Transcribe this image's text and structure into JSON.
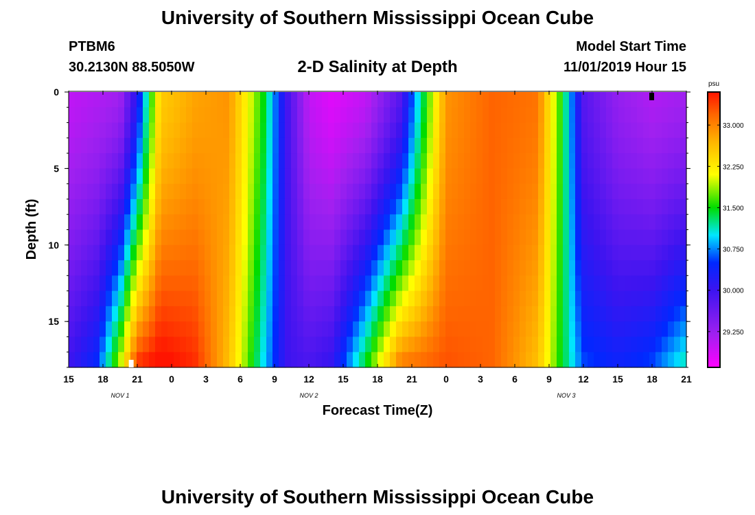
{
  "header": {
    "title": "University of Southern Mississippi Ocean Cube",
    "station": "PTBM6",
    "coordinates": "30.2130N 88.5050W",
    "plot_title": "2-D Salinity at Depth",
    "start_label": "Model Start Time",
    "start_value": "11/01/2019 Hour 15"
  },
  "footer": {
    "title": "University of Southern Mississippi Ocean Cube"
  },
  "chart_data": {
    "type": "heatmap",
    "title": "2-D Salinity at Depth",
    "xlabel": "Forecast Time(Z)",
    "ylabel": "Depth (ft)",
    "x_range_hours": [
      0,
      54
    ],
    "y_range_ft": [
      0,
      18
    ],
    "x_ticks": [
      "15",
      "18",
      "21",
      "0",
      "3",
      "6",
      "9",
      "12",
      "15",
      "18",
      "21",
      "0",
      "3",
      "6",
      "9",
      "12",
      "15",
      "18",
      "21"
    ],
    "y_ticks": [
      "0",
      "5",
      "10",
      "15"
    ],
    "y_tick_values": [
      0,
      5,
      10,
      15
    ],
    "day_labels": [
      {
        "text": "NOV  1",
        "hour": 4.5
      },
      {
        "text": "NOV  2",
        "hour": 21
      },
      {
        "text": "NOV  3",
        "hour": 43.5
      }
    ],
    "colorbar": {
      "unit": "psu",
      "min": 28.6,
      "max": 33.6,
      "ticks": [
        29.25,
        30.0,
        30.75,
        31.5,
        32.25,
        33.0
      ],
      "tick_labels": [
        "29.250",
        "30.000",
        "30.750",
        "31.500",
        "32.250",
        "33.000"
      ]
    },
    "salinity_keyframes": {
      "hours": [
        0,
        2.5,
        4.5,
        6,
        8,
        11,
        14,
        17,
        19,
        21,
        23,
        26,
        29,
        33,
        37,
        41,
        43,
        45,
        48,
        51,
        54
      ],
      "surface_psu": [
        29.0,
        29.1,
        29.2,
        30.2,
        32.5,
        32.8,
        32.9,
        31.5,
        30.0,
        29.0,
        28.8,
        29.0,
        29.8,
        32.9,
        33.2,
        33.1,
        31.6,
        29.8,
        29.3,
        29.1,
        29.2
      ],
      "bottom_psu": [
        30.0,
        30.5,
        32.0,
        33.5,
        33.7,
        33.5,
        32.6,
        31.0,
        30.0,
        29.9,
        30.1,
        31.5,
        33.1,
        33.3,
        33.2,
        32.6,
        31.5,
        30.6,
        30.4,
        30.6,
        31.2
      ]
    }
  }
}
